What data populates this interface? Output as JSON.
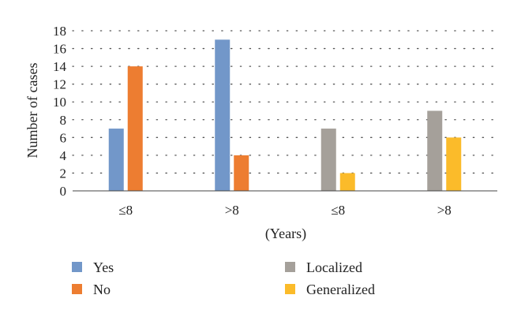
{
  "chart_data": {
    "type": "bar",
    "title": "",
    "xlabel": "(Years)",
    "ylabel": "Number of cases",
    "ylim": [
      0,
      18
    ],
    "yticks": [
      0,
      2,
      4,
      6,
      8,
      10,
      12,
      14,
      16,
      18
    ],
    "grid": "dotted horizontal",
    "categories": [
      "≤8",
      ">8",
      "≤8",
      ">8"
    ],
    "series": [
      {
        "name": "Yes",
        "color": "#7297c9",
        "values": [
          7,
          17,
          null,
          null
        ]
      },
      {
        "name": "No",
        "color": "#ed7d31",
        "values": [
          14,
          4,
          null,
          null
        ]
      },
      {
        "name": "Localized",
        "color": "#a5a09a",
        "values": [
          null,
          null,
          7,
          9
        ]
      },
      {
        "name": "Generalized",
        "color": "#fbbb2a",
        "values": [
          null,
          null,
          2,
          6
        ]
      }
    ],
    "legend_position": "bottom"
  }
}
